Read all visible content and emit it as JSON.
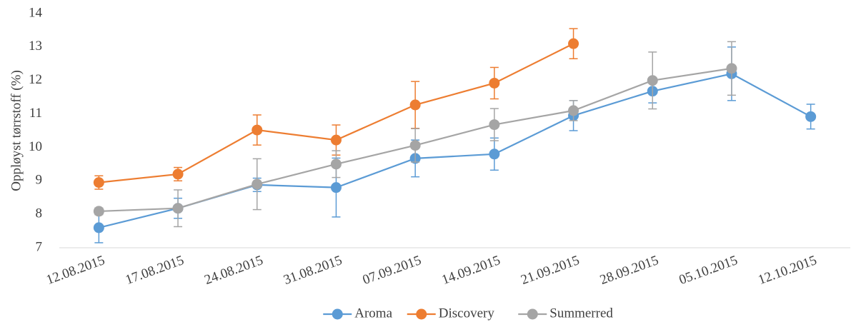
{
  "chart_data": {
    "type": "line",
    "ylabel": "Oppløyst tørrstoff (%)",
    "categories": [
      "12.08.2015",
      "17.08.2015",
      "24.08.2015",
      "31.08.2015",
      "07.09.2015",
      "14.09.2015",
      "21.09.2015",
      "28.09.2015",
      "05.10.2015",
      "12.10.2015"
    ],
    "series": [
      {
        "name": "Aroma",
        "color": "#5b9bd5",
        "values": [
          7.6,
          8.18,
          8.88,
          8.8,
          9.67,
          9.8,
          10.95,
          11.68,
          12.2,
          10.92
        ],
        "errors": [
          0.45,
          0.3,
          0.2,
          0.88,
          0.55,
          0.48,
          0.45,
          0.35,
          0.8,
          0.37
        ]
      },
      {
        "name": "Discovery",
        "color": "#ed7d31",
        "values": [
          8.95,
          9.2,
          10.52,
          10.22,
          11.27,
          11.92,
          13.1,
          null,
          null,
          null
        ],
        "errors": [
          0.2,
          0.2,
          0.45,
          0.45,
          0.7,
          0.47,
          0.45,
          null,
          null,
          null
        ]
      },
      {
        "name": "Summerred",
        "color": "#a5a5a5",
        "values": [
          8.09,
          8.18,
          8.9,
          9.5,
          10.06,
          10.68,
          11.1,
          12.0,
          12.36,
          null
        ],
        "errors": [
          0.1,
          0.55,
          0.76,
          0.4,
          0.5,
          0.48,
          0.3,
          0.85,
          0.8,
          null
        ]
      }
    ],
    "ylim": [
      7,
      14
    ],
    "yticks": [
      7,
      8,
      9,
      10,
      11,
      12,
      13,
      14
    ],
    "grid": false,
    "legend": "bottom"
  }
}
